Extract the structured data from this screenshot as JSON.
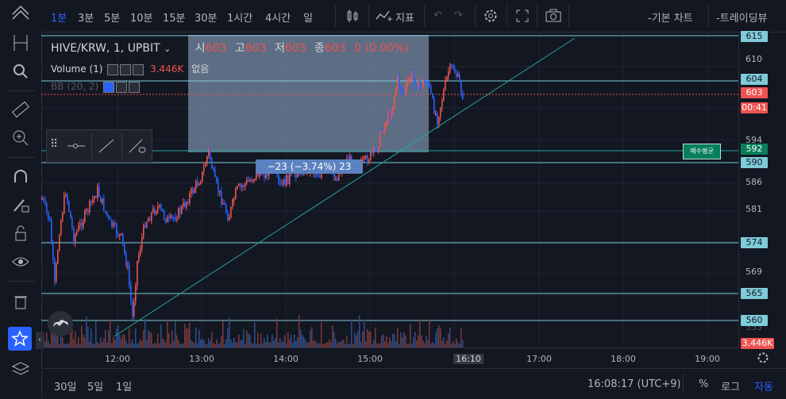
{
  "toolbar": {
    "intervals": [
      "1분",
      "3분",
      "5분",
      "10분",
      "15분",
      "30분",
      "1시간",
      "4시간",
      "일"
    ],
    "indicators_label": "지표",
    "basic_chart_label": "-기본 차트",
    "tradingview_label": "-트레이딩뷰"
  },
  "legend": {
    "symbol": "HIVE/KRW, 1, UPBIT",
    "o_label": "시",
    "o_val": "603",
    "h_label": "고",
    "h_val": "603",
    "l_label": "저",
    "l_val": "603",
    "c_label": "종",
    "c_val": "603",
    "change": "0 (0.00%)",
    "volume_label": "Volume (1)",
    "volume_val": "3.446K",
    "volume_extra": "없음",
    "bb_label": "BB (20, 2)"
  },
  "measure_label": "−23 (−3.74%) 23",
  "avg_label": "매수평균",
  "price_labels": [
    "610",
    "594",
    "586",
    "581",
    "569",
    "555"
  ],
  "price_boxes": {
    "p615": "615",
    "p604": "604",
    "p603": "603",
    "p_countdown": "00:41",
    "p592": "592",
    "p590": "590",
    "p574": "574",
    "p565": "565",
    "p560": "560",
    "pvol": "3.446K"
  },
  "time_labels": [
    "12:00",
    "13:00",
    "14:00",
    "15:00",
    "16:10",
    "17:00",
    "18:00",
    "19:00"
  ],
  "bottom": {
    "ranges": [
      "30일",
      "5일",
      "1일"
    ],
    "clock": "16:08:17 (UTC+9)",
    "percent": "%",
    "log": "로그",
    "auto": "자동"
  },
  "colors": {
    "up": "#ef5350",
    "down": "#2962ff",
    "accent": "#2962ff",
    "teal": "#26a69a"
  }
}
